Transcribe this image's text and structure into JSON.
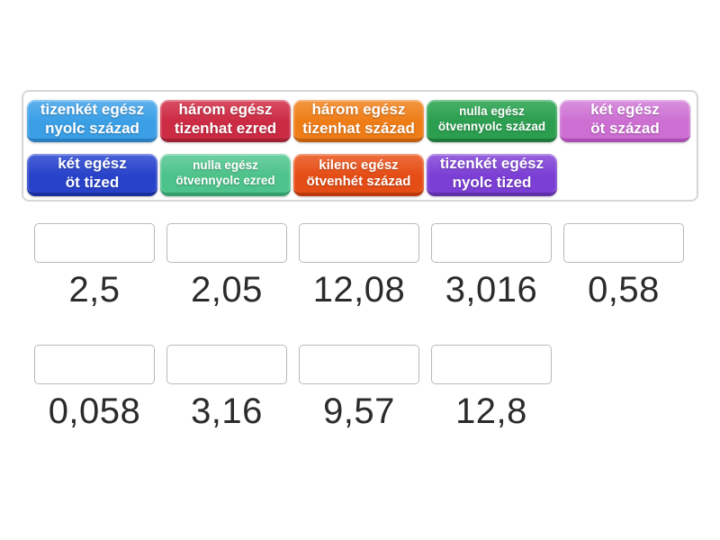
{
  "tiles": [
    {
      "line1": "tizenkét egész",
      "line2": "nyolc század",
      "bg": "#3b9fe6",
      "highlight": "#5fb2ee",
      "edge": "#2a7fc2"
    },
    {
      "line1": "három egész",
      "line2": "tizenhat ezred",
      "bg": "#cc2b44",
      "highlight": "#d94f63",
      "edge": "#a31f35"
    },
    {
      "line1": "három egész",
      "line2": "tizenhat század",
      "bg": "#ef7d17",
      "highlight": "#f39743",
      "edge": "#c25f0e"
    },
    {
      "line1": "nulla egész",
      "line2": "ötvennyolc század",
      "bg": "#2c9e50",
      "highlight": "#47b269",
      "edge": "#1e7a3a"
    },
    {
      "line1": "két egész",
      "line2": "öt század",
      "bg": "#cc6ed2",
      "highlight": "#da92de",
      "edge": "#ad4cb5"
    },
    {
      "line1": "két egész",
      "line2": "öt tized",
      "bg": "#2843ca",
      "highlight": "#4a63d8",
      "edge": "#1b2f9c"
    },
    {
      "line1": "nulla egész",
      "line2": "ötvennyolc ezred",
      "bg": "#4ec28b",
      "highlight": "#6fd0a3",
      "edge": "#35a06d"
    },
    {
      "line1": "kilenc egész",
      "line2": "ötvenhét század",
      "bg": "#e54d16",
      "highlight": "#ee6f3e",
      "edge": "#bb3a0d"
    },
    {
      "line1": "tizenkét egész",
      "line2": "nyolc tized",
      "bg": "#7c3fd5",
      "highlight": "#9763de",
      "edge": "#6130a8"
    }
  ],
  "answers": {
    "row1": [
      "2,5",
      "2,05",
      "12,08",
      "3,016",
      "0,58"
    ],
    "row2": [
      "0,058",
      "3,16",
      "9,57",
      "12,8"
    ]
  },
  "colors": {
    "page_background": "#ffffff",
    "board_border": "#d6d6d6",
    "drop_box_border": "#b9b9b9",
    "number_text": "#2b2b2b",
    "tile_text": "#ffffff"
  }
}
